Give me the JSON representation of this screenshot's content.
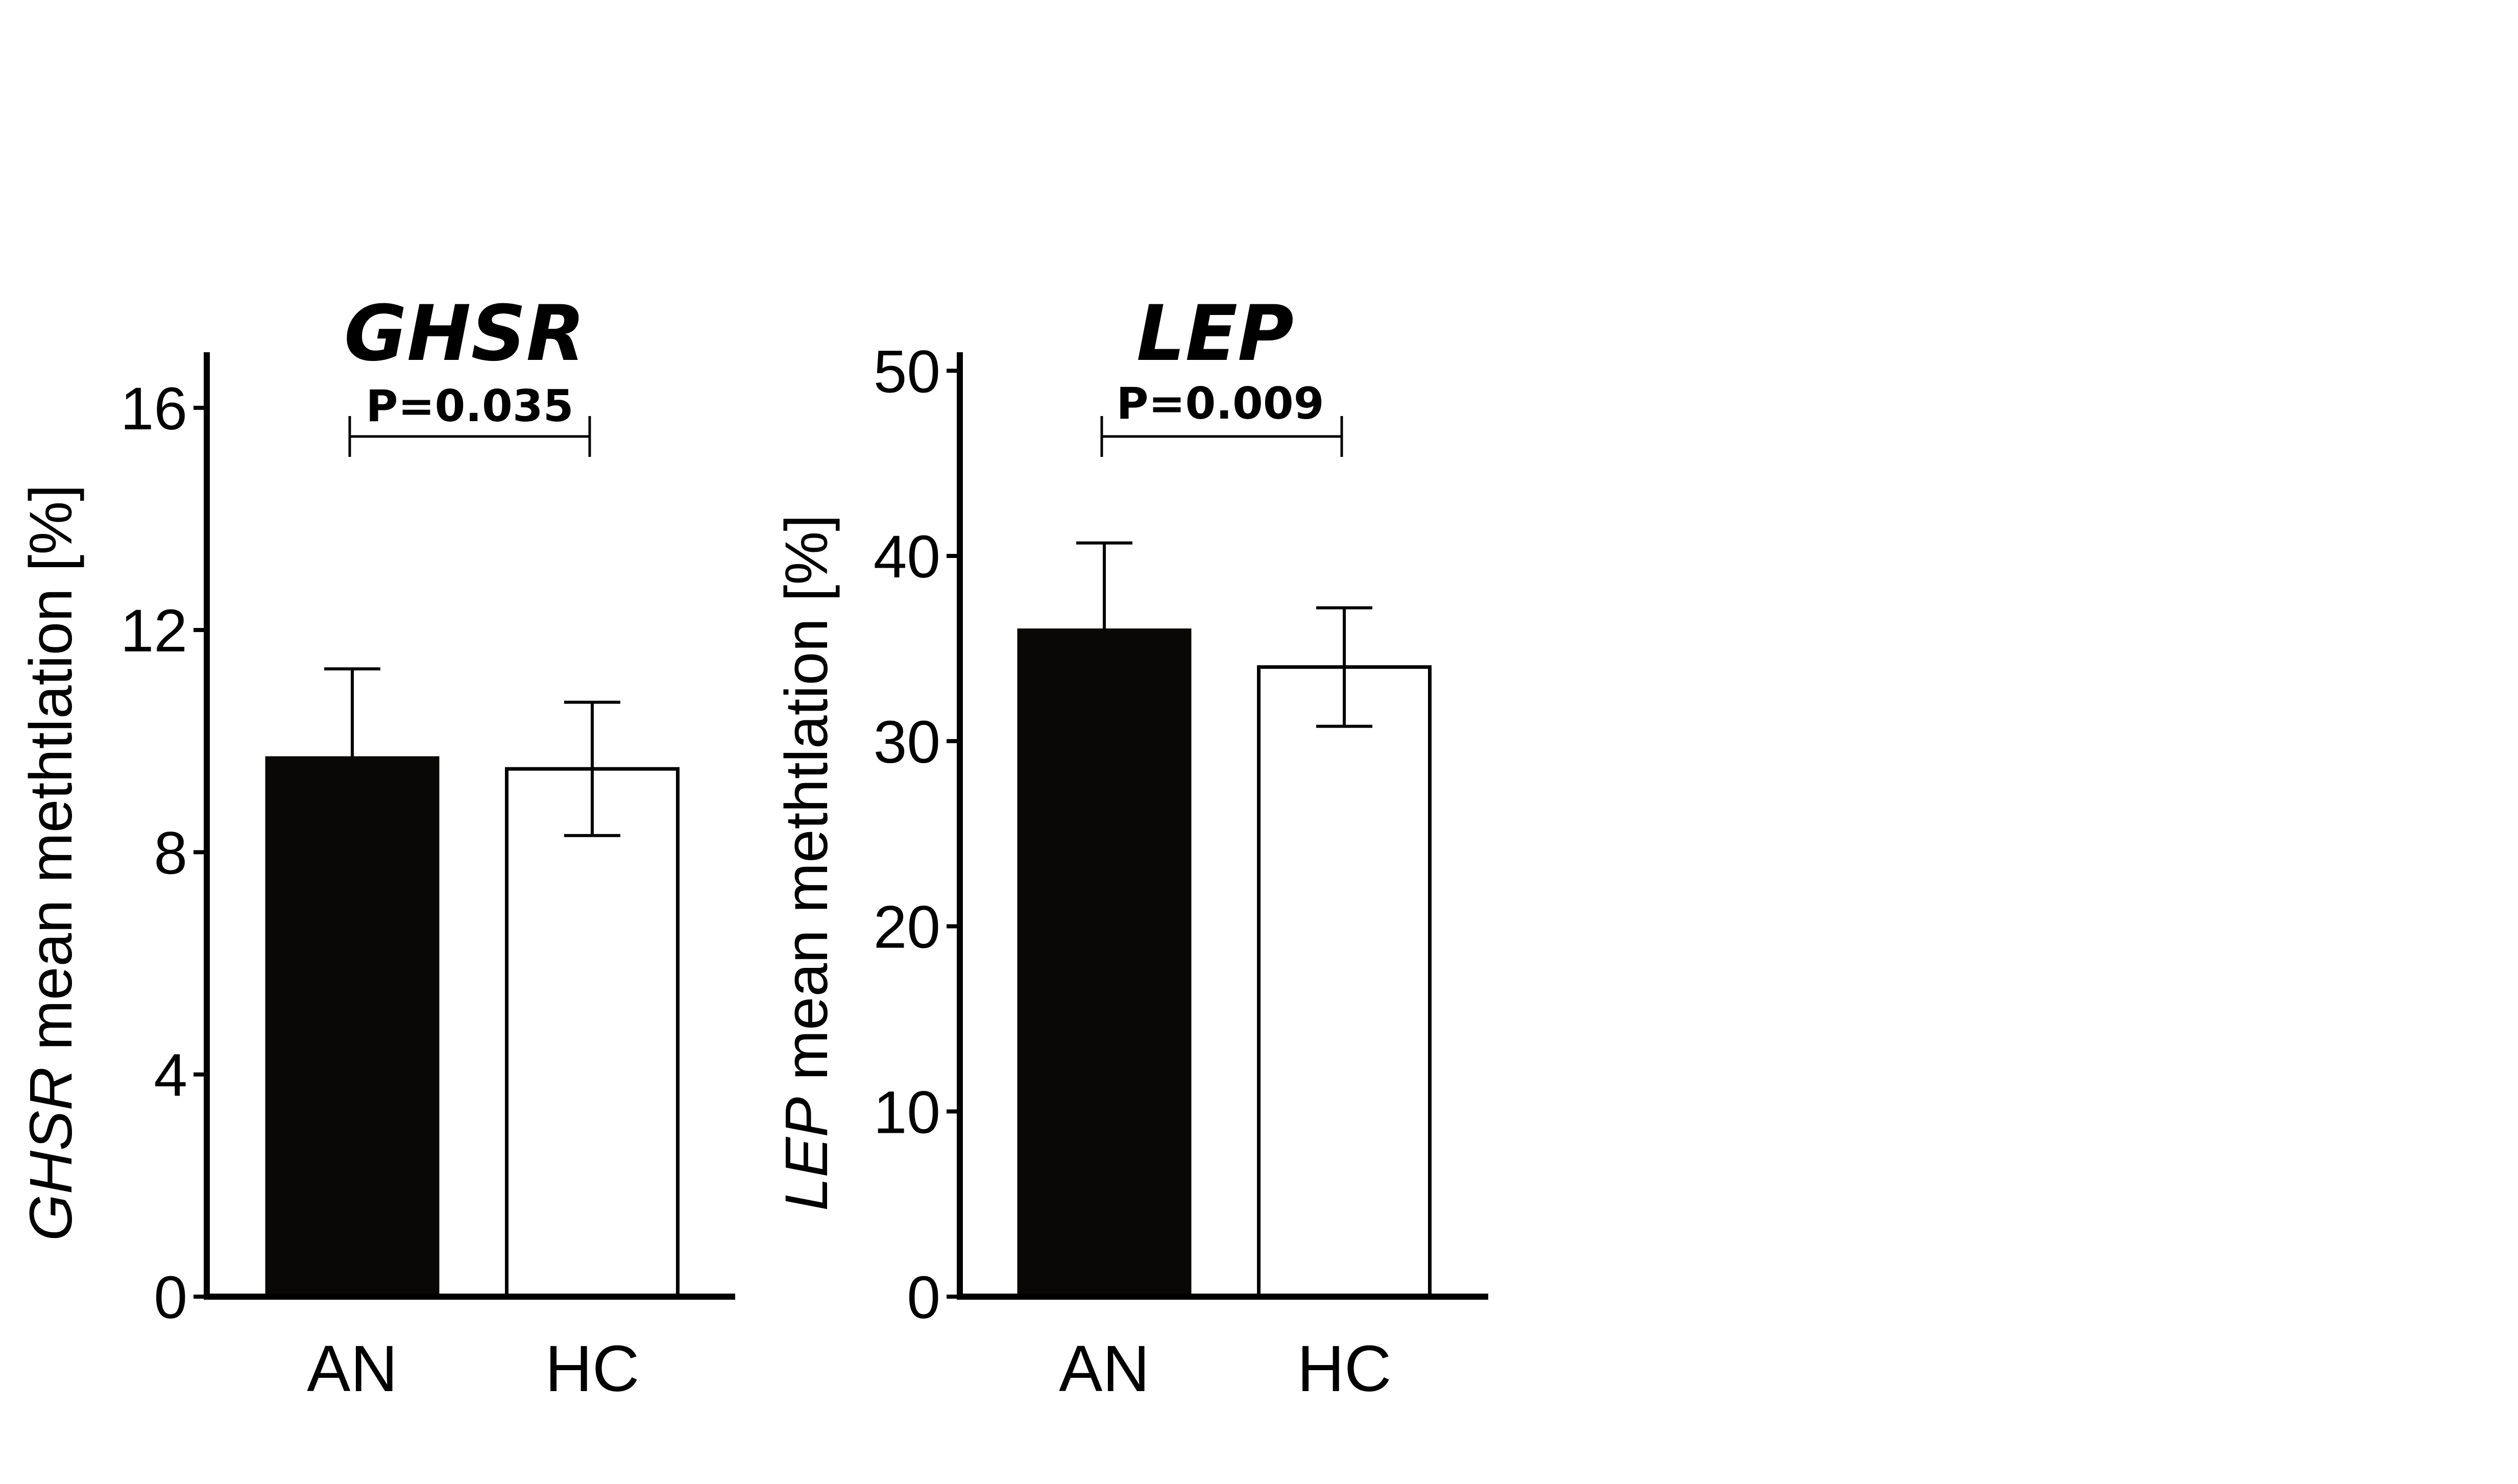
{
  "chart_data": [
    {
      "type": "bar",
      "title": "GHSR",
      "ylabel_gene": "GHSR",
      "ylabel_rest": " mean methtlation [%]",
      "categories": [
        "AN",
        "HC"
      ],
      "values": [
        9.7,
        9.5
      ],
      "error_upper": [
        11.3,
        10.7
      ],
      "error_lower": [
        9.7,
        8.3
      ],
      "fill": [
        "filled",
        "open"
      ],
      "ylim": [
        0,
        17
      ],
      "yticks": [
        0,
        4,
        8,
        12,
        16
      ],
      "significance": "P=0.035"
    },
    {
      "type": "bar",
      "title": "LEP",
      "ylabel_gene": "LEP",
      "ylabel_rest": " mean methtlation [%]",
      "categories": [
        "AN",
        "HC"
      ],
      "values": [
        36,
        34
      ],
      "error_upper": [
        40.7,
        37.2
      ],
      "error_lower": [
        36,
        30.8
      ],
      "fill": [
        "filled",
        "open"
      ],
      "ylim": [
        0,
        51
      ],
      "yticks": [
        0,
        10,
        20,
        30,
        40,
        50
      ],
      "significance": "P=0.009"
    }
  ],
  "colors": {
    "filled_bar": "#0a0806",
    "open_bar": "#ffffff",
    "axis": "#000000"
  }
}
